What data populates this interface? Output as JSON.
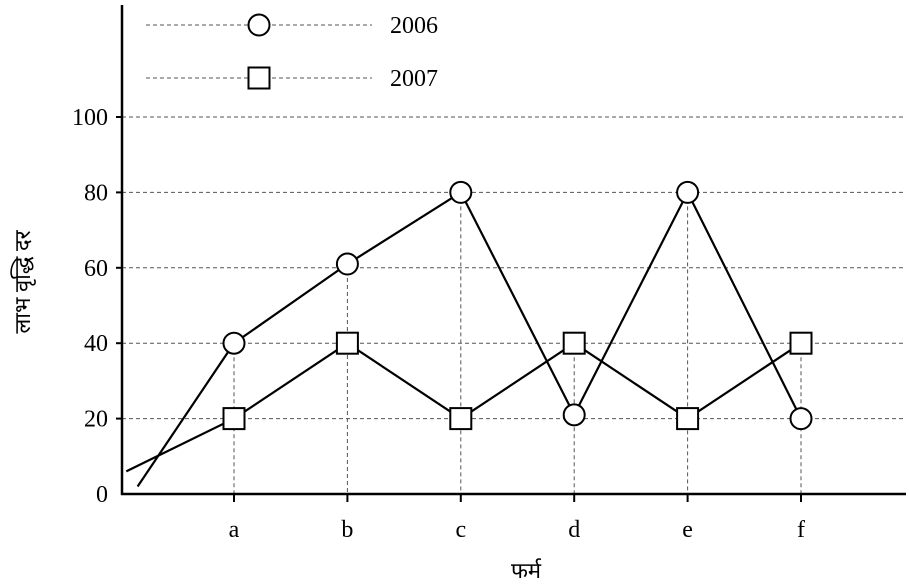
{
  "chart_data": {
    "type": "line",
    "categories": [
      "a",
      "b",
      "c",
      "d",
      "e",
      "f"
    ],
    "series": [
      {
        "name": "2006",
        "marker": "circle",
        "values": [
          40,
          61,
          80,
          21,
          80,
          20
        ]
      },
      {
        "name": "2007",
        "marker": "square",
        "values": [
          20,
          40,
          20,
          40,
          20,
          40
        ]
      }
    ],
    "extended_lines": {
      "2006": {
        "x_start": -0.85,
        "y_start": 2
      },
      "2007": {
        "x_start": -0.95,
        "y_start": 6
      }
    },
    "title": "",
    "xlabel": "फर्म",
    "ylabel": "लाभ वृद्धि दर",
    "ylim": [
      0,
      100
    ],
    "yticks": [
      0,
      20,
      40,
      60,
      80,
      100
    ],
    "grid": "horizontal dashed at y ticks, vertical dashed drop lines at categories",
    "legend": "top-left",
    "colors": {
      "line": "#000000",
      "grid": "#555555",
      "marker_fill": "#ffffff"
    }
  }
}
